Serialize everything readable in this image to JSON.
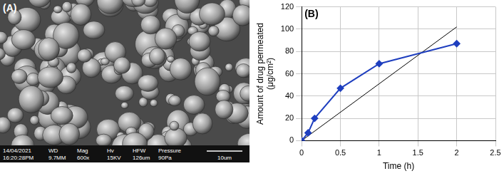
{
  "micrograph": {
    "panel_label": "(A)",
    "date": "14/04/2021",
    "time": "16:20:28PM",
    "fields": [
      {
        "label": "WD",
        "value": "9.7MM"
      },
      {
        "label": "Mag",
        "value": "600x"
      },
      {
        "label": "Hv",
        "value": "15KV"
      },
      {
        "label": "HFW",
        "value": "126um"
      },
      {
        "label": "Pressure",
        "value": "90Pa"
      }
    ],
    "scale_bar": "10um"
  },
  "chart_data": {
    "type": "line",
    "title": "(B)",
    "x_label": "Time (h)",
    "y_label": [
      "Amount of drug permeated",
      "(μg/cm²)"
    ],
    "series": [
      {
        "color": "#1f3fbf",
        "marker": "diamond",
        "line_style": "solid",
        "x": [
          0,
          0.083,
          0.167,
          0.5,
          1,
          2
        ],
        "values": [
          0,
          7,
          20,
          47,
          69,
          87
        ]
      },
      {
        "color": "#000000",
        "marker": "none",
        "line_style": "solid",
        "x": [
          0,
          2
        ],
        "values": [
          0,
          102
        ]
      }
    ],
    "xlim": [
      0,
      2.5
    ],
    "xticks": [
      0,
      0.5,
      1,
      1.5,
      2,
      2.5
    ],
    "ylim": [
      0,
      120
    ],
    "yticks": [
      0,
      20,
      40,
      60,
      80,
      100,
      120
    ],
    "grid": true
  }
}
